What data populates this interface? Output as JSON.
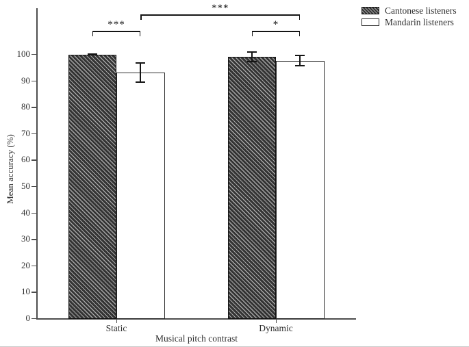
{
  "chart_data": {
    "type": "bar",
    "title": "",
    "xlabel": "Musical pitch contrast",
    "ylabel": "Mean accuracy (%)",
    "ylim": [
      0,
      100
    ],
    "yticks": [
      0,
      10,
      20,
      30,
      40,
      50,
      60,
      70,
      80,
      90,
      100
    ],
    "categories": [
      "Static",
      "Dynamic"
    ],
    "series": [
      {
        "name": "Cantonese listeners",
        "style": "hatched",
        "values": [
          99.8,
          99.0
        ],
        "errors": [
          0.4,
          2.0
        ]
      },
      {
        "name": "Mandarin listeners",
        "style": "plain",
        "values": [
          93.0,
          97.5
        ],
        "errors": [
          3.9,
          2.2
        ]
      }
    ],
    "grid": false,
    "legend_position": "top-right",
    "significance": [
      {
        "label": "***",
        "from": {
          "cat": 0,
          "series": 0
        },
        "to": {
          "cat": 0,
          "series": 1
        },
        "tier": 0
      },
      {
        "label": "*",
        "from": {
          "cat": 1,
          "series": 0
        },
        "to": {
          "cat": 1,
          "series": 1
        },
        "tier": 0
      },
      {
        "label": "***",
        "from": {
          "cat": 0,
          "series": 1
        },
        "to": {
          "cat": 1,
          "series": 1
        },
        "tier": 1
      }
    ]
  },
  "colors": {
    "bar_hatch_dark": "#343434",
    "bar_hatch_light": "#a6a6a6",
    "bar_plain_fill": "#ffffff",
    "bar_border": "#101010",
    "axis": "#4d4d4d",
    "text": "#2e2e2e",
    "error_bar": "#141414"
  }
}
